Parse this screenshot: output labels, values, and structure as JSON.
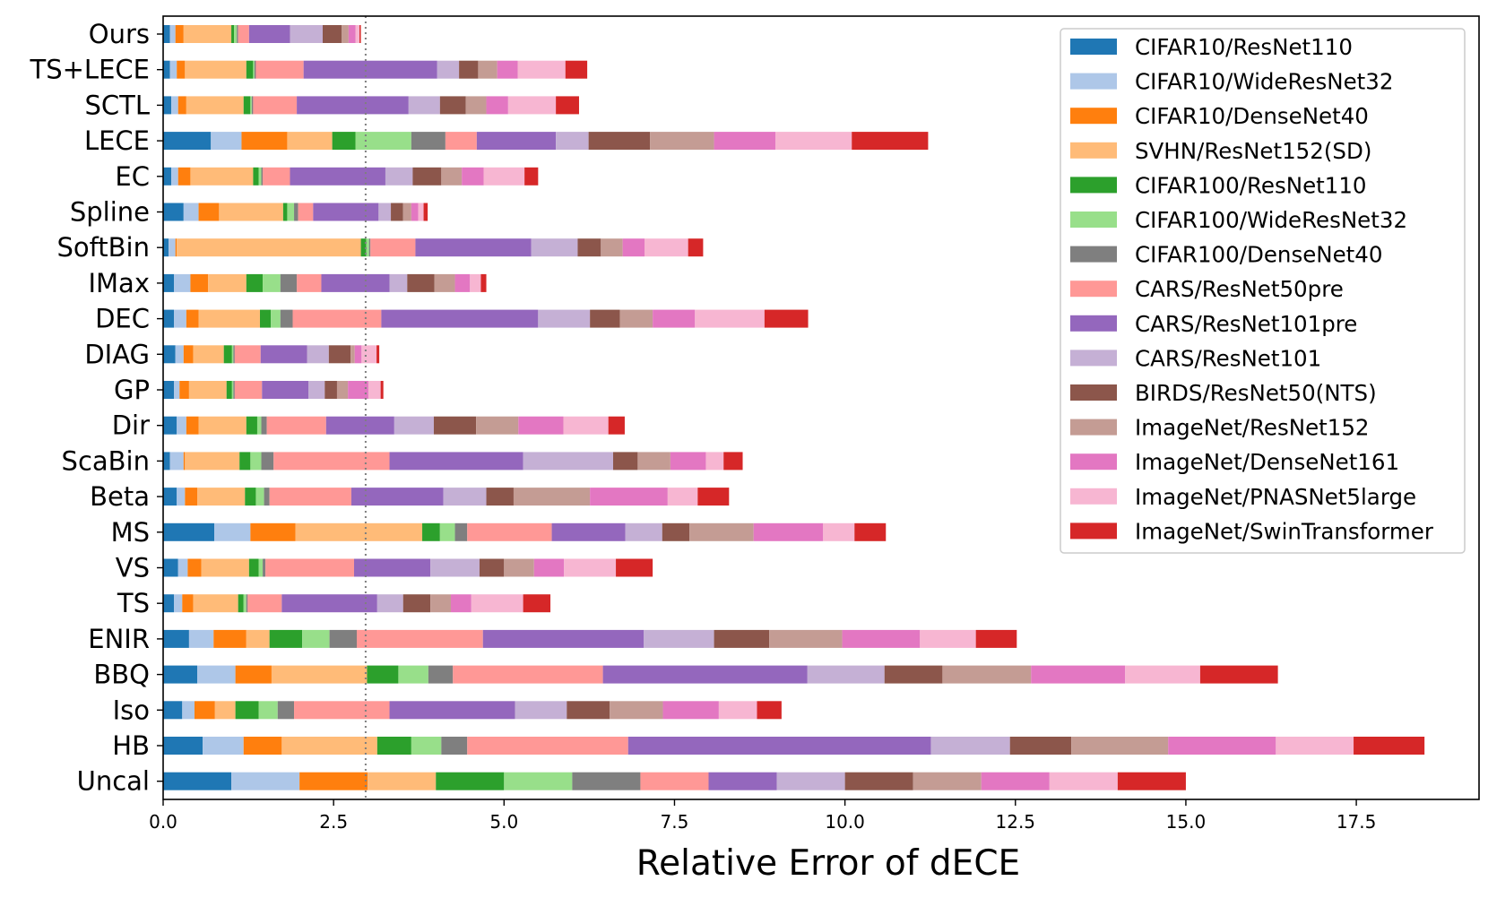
{
  "chart_data": {
    "type": "bar",
    "orientation": "horizontal",
    "stacked": true,
    "title": "",
    "xlabel": "Relative Error of dECE",
    "ylabel": "",
    "xlim": [
      0,
      19.3
    ],
    "xticks": [
      0.0,
      2.5,
      5.0,
      7.5,
      10.0,
      12.5,
      15.0,
      17.5
    ],
    "xtick_labels": [
      "0.0",
      "2.5",
      "5.0",
      "7.5",
      "10.0",
      "12.5",
      "15.0",
      "17.5"
    ],
    "reference_line": {
      "x": 2.97,
      "style": "dotted"
    },
    "legend_position": "top-right",
    "categories": [
      "Ours",
      "TS+LECE",
      "SCTL",
      "LECE",
      "EC",
      "Spline",
      "SoftBin",
      "IMax",
      "DEC",
      "DIAG",
      "GP",
      "Dir",
      "ScaBin",
      "Beta",
      "MS",
      "VS",
      "TS",
      "ENIR",
      "BBQ",
      "Iso",
      "HB",
      "Uncal"
    ],
    "series": [
      {
        "name": "CIFAR10/ResNet110",
        "color": "#1f77b4",
        "values": [
          0.1,
          0.1,
          0.12,
          0.7,
          0.12,
          0.3,
          0.08,
          0.16,
          0.16,
          0.18,
          0.16,
          0.2,
          0.1,
          0.2,
          0.75,
          0.22,
          0.16,
          0.38,
          0.5,
          0.28,
          0.58,
          1.0
        ]
      },
      {
        "name": "CIFAR10/WideResNet32",
        "color": "#aec7e8",
        "values": [
          0.08,
          0.1,
          0.1,
          0.45,
          0.1,
          0.22,
          0.1,
          0.24,
          0.18,
          0.12,
          0.08,
          0.14,
          0.2,
          0.12,
          0.53,
          0.14,
          0.12,
          0.36,
          0.56,
          0.18,
          0.6,
          1.0
        ]
      },
      {
        "name": "CIFAR10/DenseNet40",
        "color": "#ff7f0e",
        "values": [
          0.12,
          0.12,
          0.12,
          0.67,
          0.18,
          0.3,
          0.02,
          0.26,
          0.18,
          0.14,
          0.14,
          0.18,
          0.02,
          0.18,
          0.66,
          0.2,
          0.16,
          0.48,
          0.53,
          0.3,
          0.56,
          1.0
        ]
      },
      {
        "name": "SVHN/ResNet152(SD)",
        "color": "#ffbb78",
        "values": [
          0.7,
          0.9,
          0.84,
          0.66,
          0.92,
          0.94,
          2.7,
          0.56,
          0.9,
          0.45,
          0.55,
          0.7,
          0.8,
          0.7,
          1.86,
          0.7,
          0.66,
          0.34,
          1.4,
          0.3,
          1.4,
          1.0
        ]
      },
      {
        "name": "CIFAR100/ResNet110",
        "color": "#2ca02c",
        "values": [
          0.04,
          0.1,
          0.1,
          0.34,
          0.08,
          0.06,
          0.08,
          0.24,
          0.16,
          0.12,
          0.08,
          0.16,
          0.16,
          0.16,
          0.26,
          0.14,
          0.08,
          0.48,
          0.46,
          0.34,
          0.5,
          1.0
        ]
      },
      {
        "name": "CIFAR100/WideResNet32",
        "color": "#98df8a",
        "values": [
          0.04,
          0.02,
          0.02,
          0.82,
          0.04,
          0.1,
          0.04,
          0.26,
          0.14,
          0.02,
          0.02,
          0.06,
          0.16,
          0.12,
          0.22,
          0.06,
          0.04,
          0.4,
          0.44,
          0.28,
          0.44,
          1.0
        ]
      },
      {
        "name": "CIFAR100/DenseNet40",
        "color": "#7f7f7f",
        "values": [
          0.02,
          0.02,
          0.02,
          0.5,
          0.02,
          0.06,
          0.02,
          0.24,
          0.18,
          0.02,
          0.02,
          0.08,
          0.18,
          0.08,
          0.18,
          0.04,
          0.02,
          0.4,
          0.36,
          0.24,
          0.38,
          1.0
        ]
      },
      {
        "name": "CARS/ResNet50pre",
        "color": "#ff9896",
        "values": [
          0.16,
          0.7,
          0.64,
          0.46,
          0.4,
          0.22,
          0.66,
          0.36,
          1.3,
          0.38,
          0.4,
          0.87,
          1.7,
          1.2,
          1.24,
          1.3,
          0.5,
          1.85,
          2.2,
          1.4,
          2.36,
          1.0
        ]
      },
      {
        "name": "CARS/ResNet101pre",
        "color": "#9467bd",
        "values": [
          0.6,
          1.96,
          1.64,
          1.16,
          1.4,
          0.96,
          1.7,
          1.0,
          2.3,
          0.68,
          0.68,
          1.0,
          1.96,
          1.35,
          1.08,
          1.12,
          1.4,
          2.36,
          3.0,
          1.84,
          4.44,
          1.0
        ]
      },
      {
        "name": "CARS/ResNet101",
        "color": "#c5b0d5",
        "values": [
          0.48,
          0.32,
          0.46,
          0.48,
          0.4,
          0.18,
          0.68,
          0.26,
          0.76,
          0.32,
          0.24,
          0.58,
          1.32,
          0.63,
          0.54,
          0.72,
          0.38,
          1.03,
          1.13,
          0.76,
          1.16,
          1.0
        ]
      },
      {
        "name": "BIRDS/ResNet50(NTS)",
        "color": "#8c564b",
        "values": [
          0.28,
          0.28,
          0.38,
          0.9,
          0.42,
          0.18,
          0.34,
          0.4,
          0.44,
          0.32,
          0.18,
          0.62,
          0.36,
          0.4,
          0.4,
          0.36,
          0.4,
          0.81,
          0.85,
          0.63,
          0.9,
          1.0
        ]
      },
      {
        "name": "ImageNet/ResNet152",
        "color": "#c49c94",
        "values": [
          0.1,
          0.28,
          0.3,
          0.94,
          0.3,
          0.12,
          0.32,
          0.3,
          0.48,
          0.06,
          0.16,
          0.62,
          0.48,
          1.12,
          0.94,
          0.44,
          0.3,
          1.07,
          1.3,
          0.78,
          1.42,
          1.0
        ]
      },
      {
        "name": "ImageNet/DenseNet161",
        "color": "#e377c2",
        "values": [
          0.1,
          0.3,
          0.32,
          0.9,
          0.32,
          0.1,
          0.32,
          0.22,
          0.62,
          0.1,
          0.3,
          0.66,
          0.52,
          1.14,
          1.02,
          0.44,
          0.3,
          1.14,
          1.38,
          0.82,
          1.58,
          1.0
        ]
      },
      {
        "name": "ImageNet/PNASNet5large",
        "color": "#f7b6d2",
        "values": [
          0.06,
          0.7,
          0.7,
          1.12,
          0.6,
          0.08,
          0.64,
          0.16,
          1.02,
          0.22,
          0.18,
          0.66,
          0.26,
          0.44,
          0.46,
          0.76,
          0.76,
          0.82,
          1.1,
          0.56,
          1.14,
          1.0
        ]
      },
      {
        "name": "ImageNet/SwinTransformer",
        "color": "#d62728",
        "values": [
          0.02,
          0.32,
          0.34,
          1.12,
          0.2,
          0.06,
          0.22,
          0.08,
          0.64,
          0.04,
          0.04,
          0.24,
          0.28,
          0.46,
          0.46,
          0.54,
          0.4,
          0.6,
          1.14,
          0.36,
          1.04,
          1.0
        ]
      }
    ]
  }
}
